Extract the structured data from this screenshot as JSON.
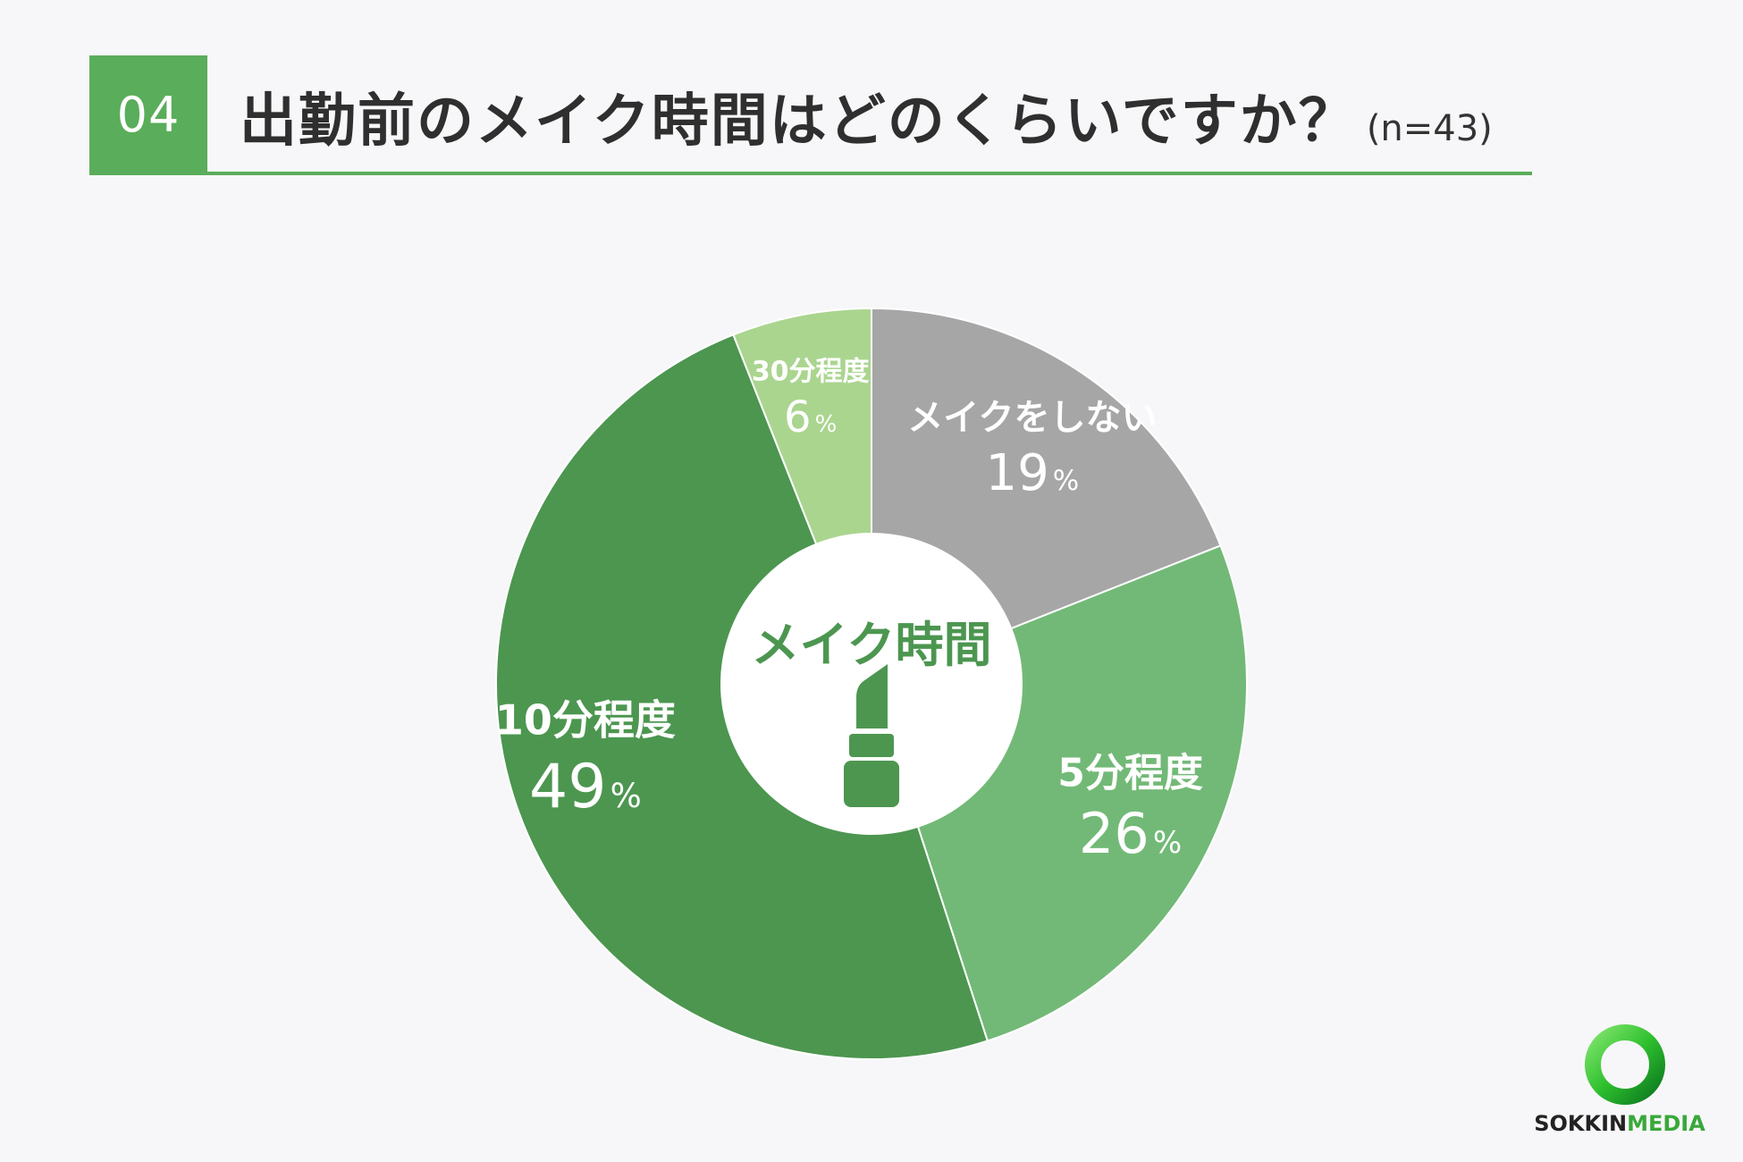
{
  "header": {
    "number": "04",
    "question": "出勤前のメイク時間はどのくらいですか？",
    "sample": "(n=43)"
  },
  "chart_data": {
    "type": "pie",
    "center_label": "メイク時間",
    "center_icon": "lipstick-icon",
    "slices": [
      {
        "label": "メイクをしない",
        "value": 19,
        "unit": "%",
        "color": "#a6a6a6"
      },
      {
        "label": "5分程度",
        "value": 26,
        "unit": "%",
        "color": "#72b977"
      },
      {
        "label": "10分程度",
        "value": 49,
        "unit": "%",
        "color": "#4c9650"
      },
      {
        "label": "30分程度",
        "value": 6,
        "unit": "%",
        "color": "#aad58f"
      }
    ]
  },
  "brand": {
    "part1": "SOKKIN",
    "part2": "MEDIA",
    "accent": "#3aa83a"
  },
  "colors": {
    "accent": "#5aad5a",
    "background": "#f7f7f9"
  }
}
